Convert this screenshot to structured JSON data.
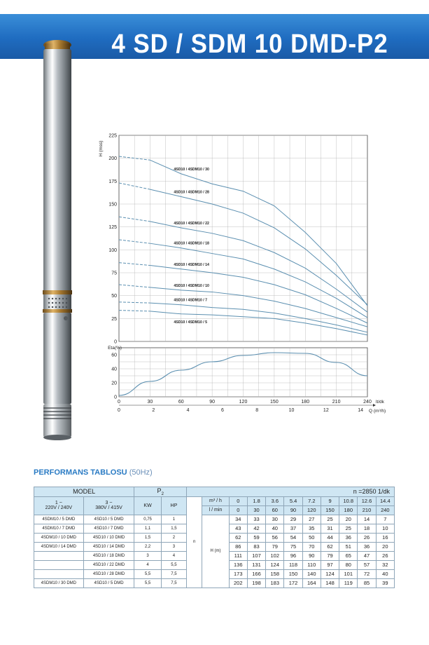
{
  "header": {
    "title": "4 SD / SDM 10 DMD-P2"
  },
  "colors": {
    "banner": "#1f6cc0",
    "curve": "#5b8fb0",
    "table_header": "#cfe6f3",
    "grid": "#b0b0b0"
  },
  "chart_data": [
    {
      "type": "line",
      "ylabel": "H (mss)",
      "ylim": [
        0,
        225
      ],
      "yticks": [
        0,
        25,
        50,
        75,
        100,
        125,
        150,
        175,
        200,
        225
      ],
      "xlim": [
        0,
        240
      ],
      "xticks": [
        0,
        30,
        60,
        90,
        120,
        150,
        180,
        210,
        240
      ],
      "x": [
        0,
        30,
        60,
        90,
        120,
        150,
        180,
        210,
        240
      ],
      "grid": true,
      "series": [
        {
          "name": "4SD10 / 4SDM10 / 30",
          "values": [
            202,
            198,
            183,
            172,
            164,
            148,
            119,
            85,
            39
          ]
        },
        {
          "name": "4SD10 / 4SDM10 / 28",
          "values": [
            173,
            166,
            158,
            150,
            140,
            124,
            101,
            72,
            40
          ]
        },
        {
          "name": "4SD10 / 4SDM10 / 22",
          "values": [
            136,
            131,
            124,
            118,
            110,
            97,
            80,
            57,
            32
          ]
        },
        {
          "name": "4SD10 / 4SDM10 / 18",
          "values": [
            111,
            107,
            102,
            96,
            90,
            79,
            65,
            47,
            26
          ]
        },
        {
          "name": "4SD10 / 4SDM10 / 14",
          "values": [
            86,
            83,
            79,
            75,
            70,
            62,
            51,
            36,
            20
          ]
        },
        {
          "name": "4SD10 / 4SDM10 / 10",
          "values": [
            62,
            59,
            56,
            54,
            50,
            44,
            36,
            26,
            16
          ]
        },
        {
          "name": "4SD10 / 4SDM10 / 7",
          "values": [
            43,
            42,
            40,
            37,
            35,
            31,
            25,
            18,
            10
          ]
        },
        {
          "name": "4SD10 / 4SDM10 / 5",
          "values": [
            34,
            33,
            30,
            29,
            27,
            25,
            20,
            14,
            7
          ]
        }
      ]
    },
    {
      "type": "line",
      "ylabel": "Eta(%)",
      "ylim": [
        0,
        70
      ],
      "yticks": [
        0,
        20,
        40,
        60
      ],
      "xlim": [
        0,
        240
      ],
      "grid": true,
      "x": [
        0,
        30,
        60,
        90,
        120,
        150,
        180,
        210,
        240
      ],
      "series": [
        {
          "values": [
            2,
            22,
            38,
            50,
            59,
            63,
            62,
            49,
            30
          ]
        }
      ],
      "xlabel_top": "lt/dk",
      "xticks_top": [
        "0",
        "30",
        "60",
        "90",
        "120",
        "150",
        "180",
        "210",
        "240"
      ],
      "xlabel_bottom": "Q (m³/h)",
      "xticks_bottom": [
        "0",
        "2",
        "4",
        "6",
        "8",
        "10",
        "12",
        "14"
      ]
    }
  ],
  "table": {
    "heading": "PERFORMANS TABLOSU",
    "heading_hz": "(50Hz)",
    "model": "MODEL",
    "p2": "P",
    "p2_sub": "2",
    "rpm": "n =2850 1/dk",
    "v1_top": "1 ~",
    "v1": "220V / 240V",
    "v3_top": "3 ~",
    "v3": "380V / 415V",
    "kw": "KW",
    "hp": "HP",
    "n": "n",
    "m3h": "m³ / h",
    "lmin": "l / min",
    "hm": "H (m)",
    "q_m3h": [
      "0",
      "1.8",
      "3.6",
      "5.4",
      "7.2",
      "9",
      "10.8",
      "12.6",
      "14.4"
    ],
    "q_lmin": [
      "0",
      "30",
      "60",
      "90",
      "120",
      "150",
      "180",
      "210",
      "240"
    ],
    "rows": [
      {
        "m1": "4SDM10 / 5 DMD",
        "m3": "4SD10 / 5 DMD",
        "kw": "0,75",
        "hp": "1",
        "h": [
          "34",
          "33",
          "30",
          "29",
          "27",
          "25",
          "20",
          "14",
          "7"
        ]
      },
      {
        "m1": "4SDM10 / 7 DMD",
        "m3": "4SD10 / 7 DMD",
        "kw": "1,1",
        "hp": "1,5",
        "h": [
          "43",
          "42",
          "40",
          "37",
          "35",
          "31",
          "25",
          "18",
          "10"
        ]
      },
      {
        "m1": "4SDM10 / 10 DMD",
        "m3": "4SD10 / 10 DMD",
        "kw": "1,5",
        "hp": "2",
        "h": [
          "62",
          "59",
          "56",
          "54",
          "50",
          "44",
          "36",
          "26",
          "16"
        ]
      },
      {
        "m1": "4SDM10 / 14 DMD",
        "m3": "4SD10 / 14 DMD",
        "kw": "2,2",
        "hp": "3",
        "h": [
          "86",
          "83",
          "79",
          "75",
          "70",
          "62",
          "51",
          "36",
          "20"
        ]
      },
      {
        "m1": "",
        "m3": "4SD10 / 18 DMD",
        "kw": "3",
        "hp": "4",
        "h": [
          "111",
          "107",
          "102",
          "96",
          "90",
          "79",
          "65",
          "47",
          "26"
        ]
      },
      {
        "m1": "",
        "m3": "4SD10 / 22 DMD",
        "kw": "4",
        "hp": "5,5",
        "h": [
          "136",
          "131",
          "124",
          "118",
          "110",
          "97",
          "80",
          "57",
          "32"
        ]
      },
      {
        "m1": "",
        "m3": "4SD10 / 28 DMD",
        "kw": "5,5",
        "hp": "7,5",
        "h": [
          "173",
          "166",
          "158",
          "150",
          "140",
          "124",
          "101",
          "72",
          "40"
        ]
      },
      {
        "m1": "4SDM10 / 30 DMD",
        "m3": "4SD10 / 5 DMD",
        "kw": "5,5",
        "hp": "7,5",
        "h": [
          "202",
          "198",
          "183",
          "172",
          "164",
          "148",
          "119",
          "85",
          "39"
        ]
      }
    ]
  }
}
